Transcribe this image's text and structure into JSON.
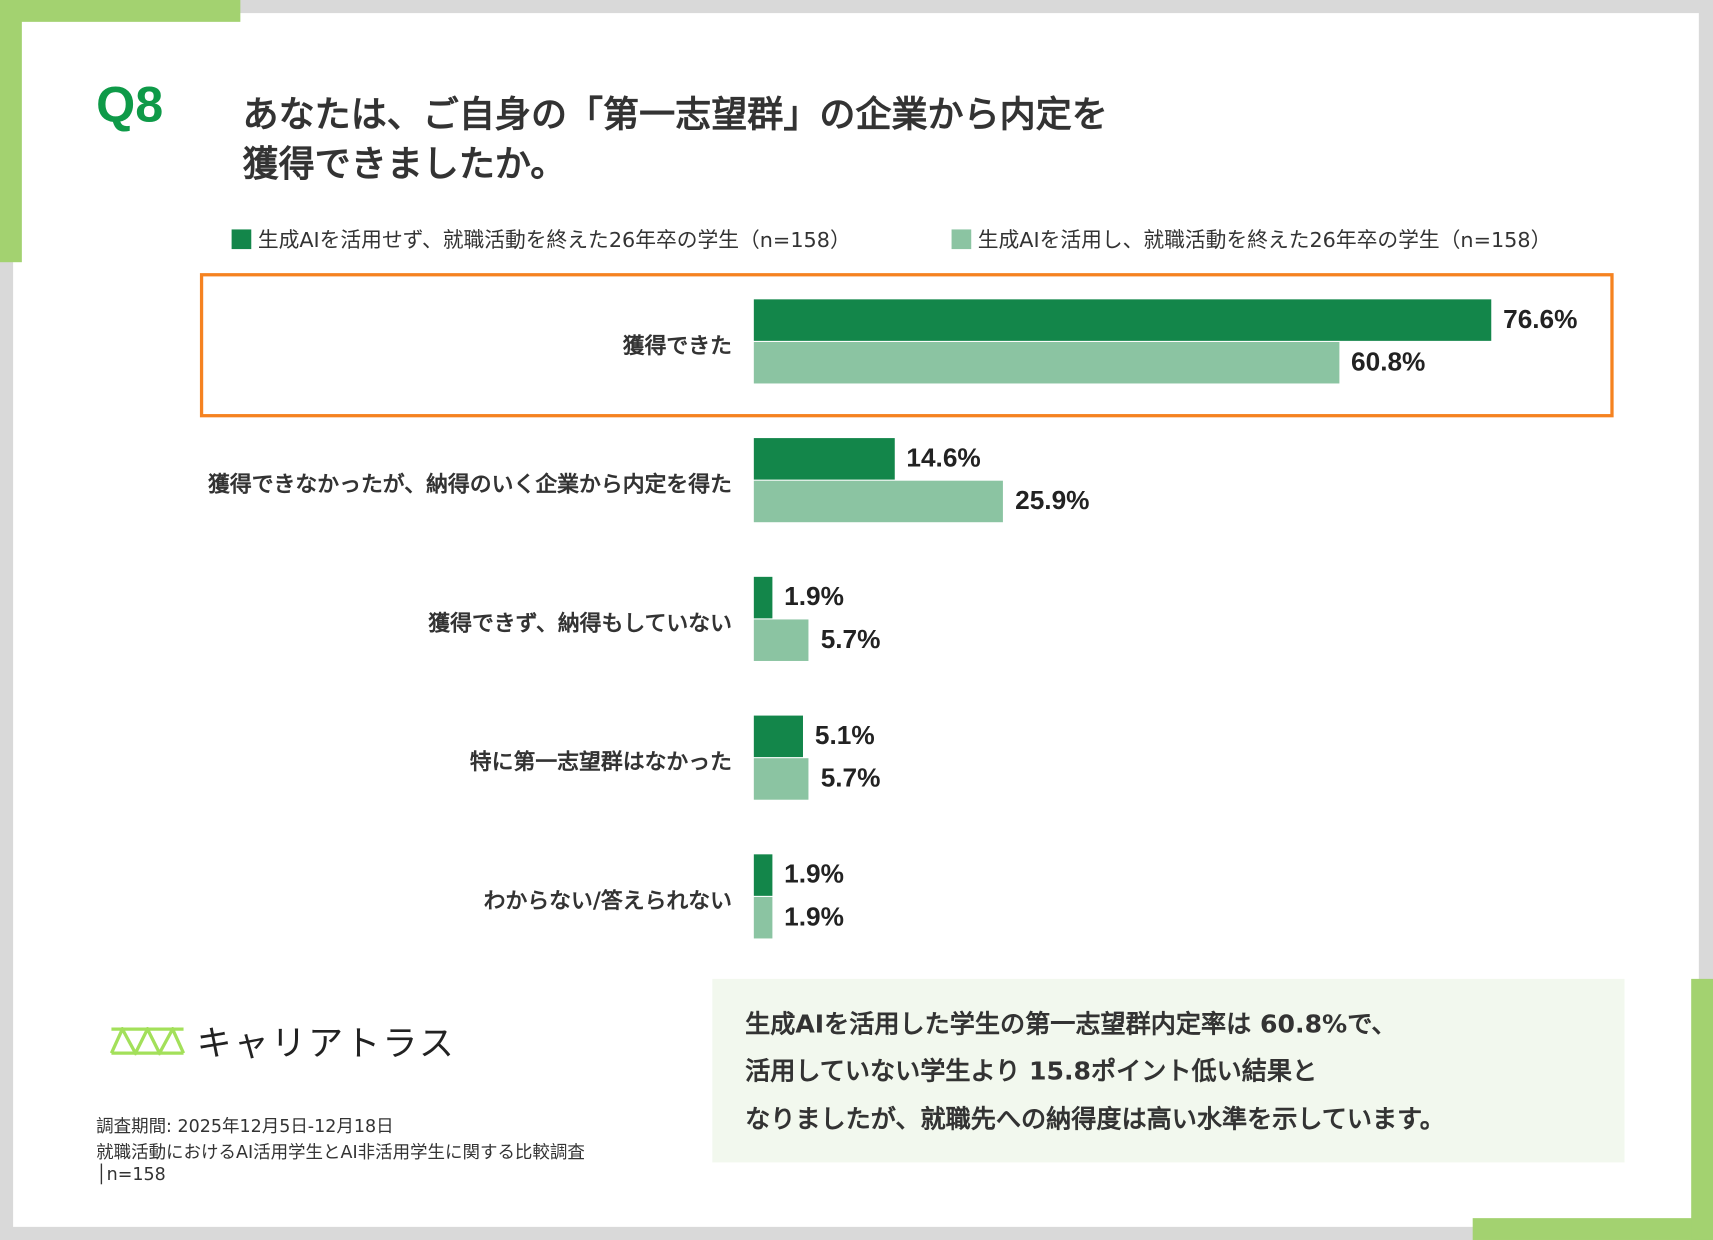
{
  "question_number": "Q8",
  "title_lines": [
    "あなたは、ご自身の「第一志望群」の企業から内定を",
    "獲得できましたか。"
  ],
  "colors": {
    "dark_series": "#13864a",
    "light_series": "#8bc4a2",
    "highlight": "#f58220",
    "accent": "#a3d270",
    "q_color": "#0e9a48"
  },
  "chart_data": {
    "type": "bar",
    "orientation": "horizontal",
    "categories": [
      "獲得できた",
      "獲得できなかったが、納得のいく企業から内定を得た",
      "獲得できず、納得もしていない",
      "特に第一志望群はなかった",
      "わからない/答えられない"
    ],
    "series": [
      {
        "name": "生成AIを活用せず、就職活動を終えた26年卒の学生（n=158）",
        "values": [
          76.6,
          14.6,
          1.9,
          5.1,
          1.9
        ],
        "color": "#13864a"
      },
      {
        "name": "生成AIを活用し、就職活動を終えた26年卒の学生（n=158）",
        "values": [
          60.8,
          25.9,
          5.7,
          5.7,
          1.9
        ],
        "color": "#8bc4a2"
      }
    ],
    "value_labels": [
      [
        "76.6%",
        "14.6%",
        "1.9%",
        "5.1%",
        "1.9%"
      ],
      [
        "60.8%",
        "25.9%",
        "5.7%",
        "5.7%",
        "1.9%"
      ]
    ],
    "xlim": [
      0,
      100
    ],
    "unit": "%",
    "legend": "top",
    "grid": false,
    "highlighted_category": "獲得できた"
  },
  "logo": {
    "text": "キャリアトラス"
  },
  "footer": [
    "調査期間: 2025年12月5日-12月18日",
    "就職活動におけるAI活用学生とAI非活用学生に関する比較調査",
    "│n=158"
  ],
  "summary": [
    "生成AIを活用した学生の第一志望群内定率は  60.8%で、",
    "活用していない学生より 15.8ポイント低い結果と",
    "なりましたが、就職先への納得度は高い水準を示しています。"
  ]
}
